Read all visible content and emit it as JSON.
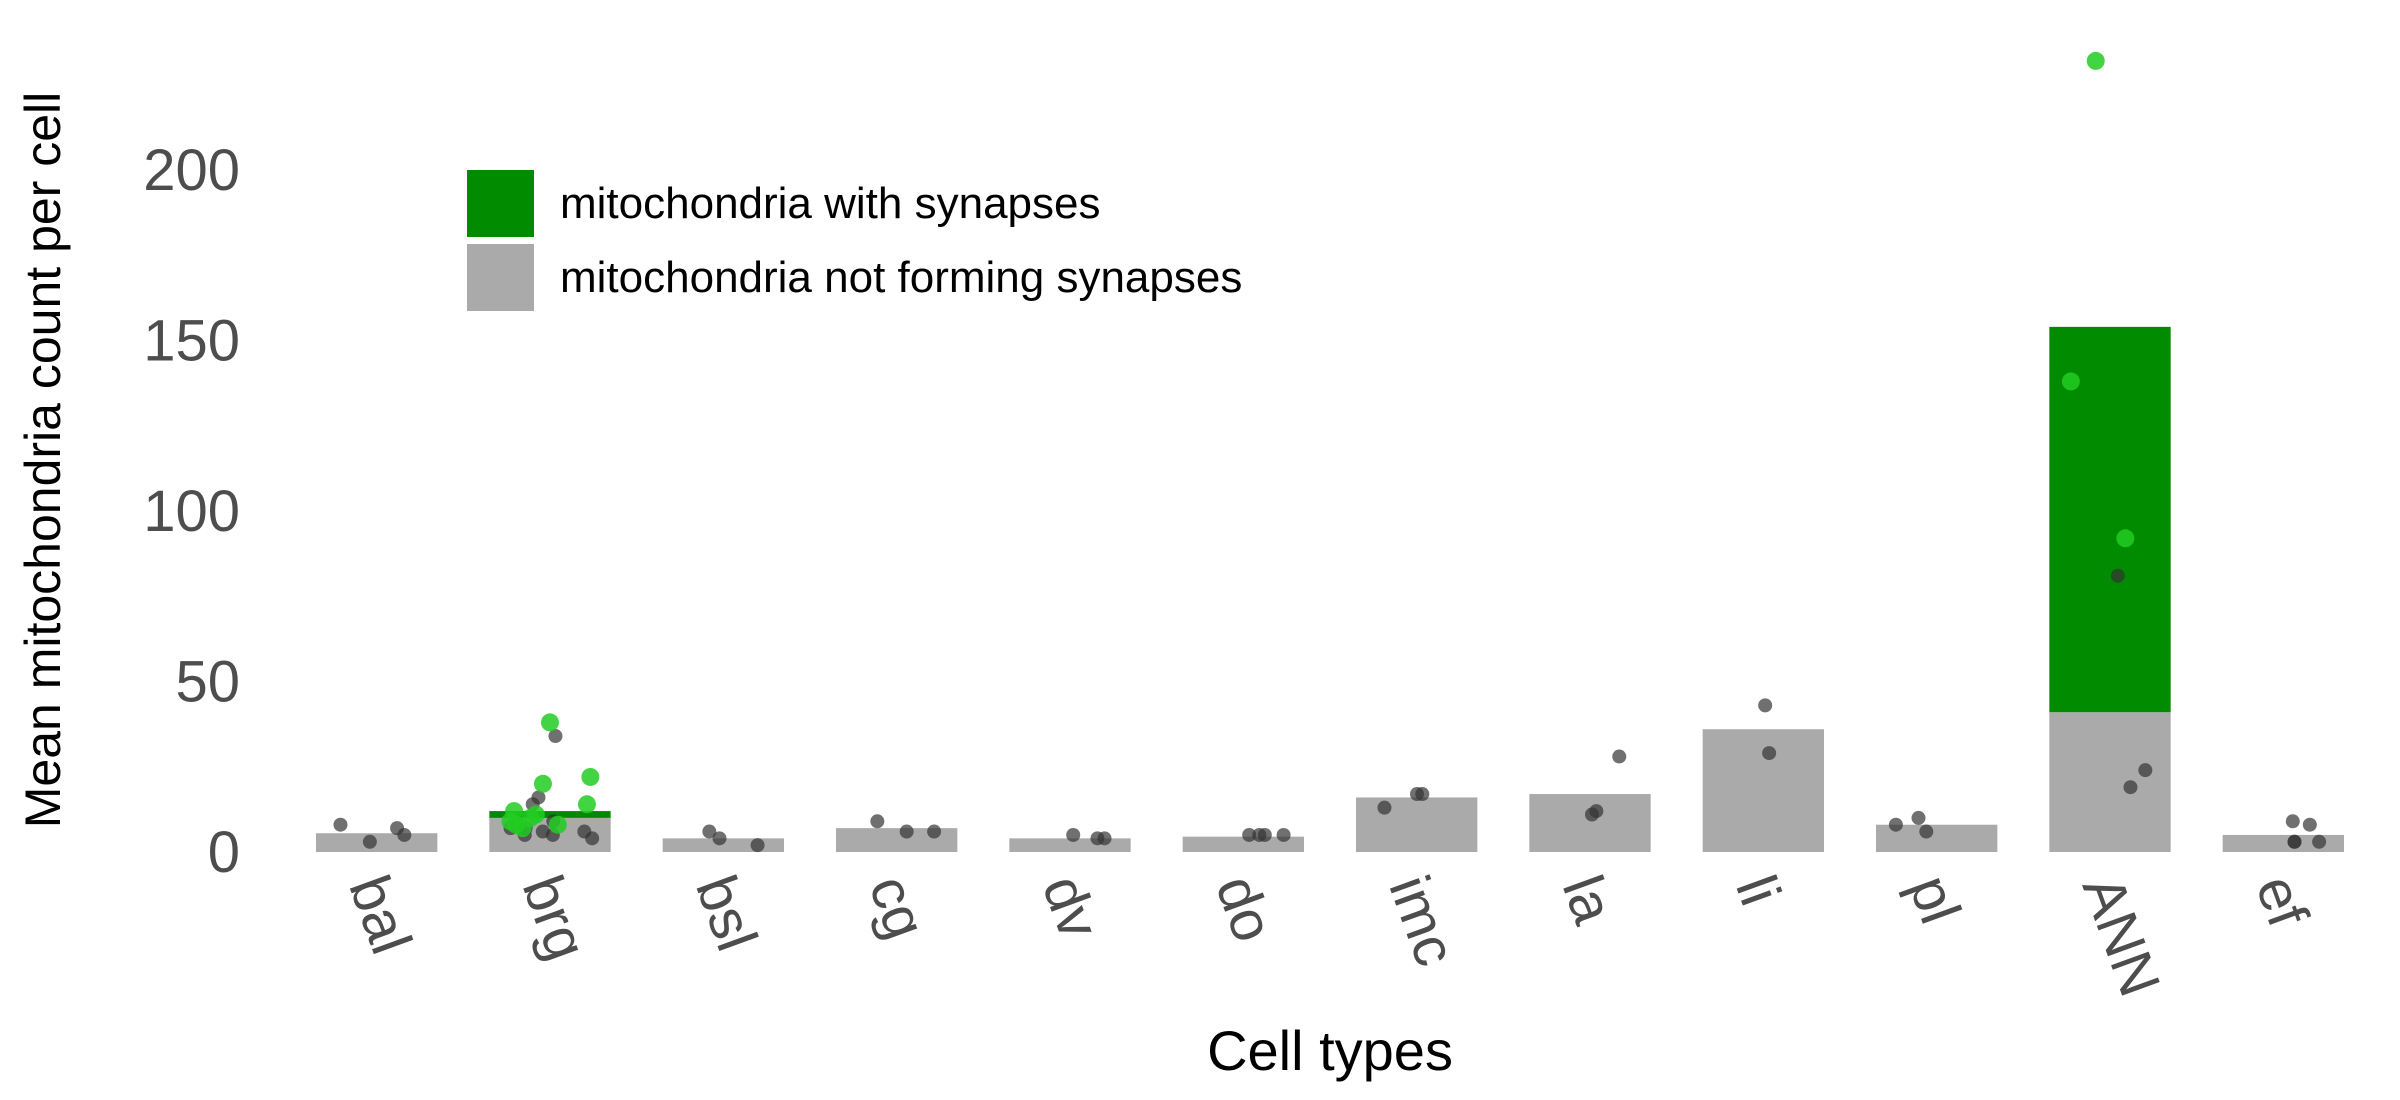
{
  "chart_data": {
    "type": "bar",
    "xlabel": "Cell types",
    "ylabel": "Mean mitochondria count per cell",
    "ylim": [
      0,
      235
    ],
    "yticks": [
      0,
      50,
      100,
      150,
      200
    ],
    "grid": false,
    "legend_position": "top-left",
    "categories": [
      "bal",
      "brg",
      "bsl",
      "cg",
      "dv",
      "do",
      "imc",
      "la",
      "li",
      "pl",
      "ANN",
      "ef"
    ],
    "series": [
      {
        "name": "mitochondria not forming synapses",
        "color": "#aaaaaa",
        "values": [
          5.5,
          10,
          4,
          7,
          4,
          4.5,
          16,
          17,
          36,
          8,
          41,
          5
        ]
      },
      {
        "name": "mitochondria with synapses",
        "color": "#008b00",
        "values": [
          0,
          2,
          0,
          0,
          0,
          0,
          0,
          0,
          0,
          0,
          113,
          0
        ]
      }
    ],
    "points_not_synapse": {
      "color": "#333333",
      "values": [
        [
          7,
          8,
          3,
          5
        ],
        [
          34,
          16,
          14,
          9,
          8,
          7,
          6,
          5,
          6,
          4,
          7,
          5
        ],
        [
          4,
          6,
          2
        ],
        [
          9,
          6,
          6
        ],
        [
          4,
          5,
          4
        ],
        [
          5,
          5,
          5,
          5
        ],
        [
          17,
          17,
          13
        ],
        [
          11,
          12,
          28
        ],
        [
          43,
          29
        ],
        [
          8,
          6,
          10
        ],
        [
          81,
          24,
          19
        ],
        [
          9,
          8,
          3,
          3,
          3
        ]
      ]
    },
    "points_synapse": {
      "color": "#22cc22",
      "values": [
        [],
        [
          38,
          22,
          20,
          14,
          12,
          11,
          9,
          8,
          7,
          8,
          10
        ],
        [],
        [],
        [],
        [],
        [],
        [],
        [],
        [],
        [
          232,
          138,
          92
        ],
        []
      ]
    }
  }
}
